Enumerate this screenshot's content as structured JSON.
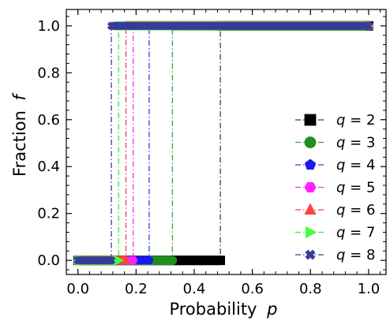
{
  "chart_data": {
    "type": "line",
    "xlabel": "Probability",
    "xlabel_var": "p",
    "ylabel": "Fraction",
    "ylabel_var": "f",
    "xlim": [
      -0.04,
      1.06
    ],
    "ylim": [
      -0.06,
      1.07
    ],
    "xticks": [
      0.0,
      0.2,
      0.4,
      0.6,
      0.8,
      1.0
    ],
    "yticks": [
      0.0,
      0.2,
      0.4,
      0.6,
      0.8,
      1.0
    ],
    "xticklabels": [
      "0.0",
      "0.2",
      "0.4",
      "0.6",
      "0.8",
      "1.0"
    ],
    "yticklabels": [
      "0.0",
      "0.2",
      "0.4",
      "0.6",
      "0.8",
      "1.0"
    ],
    "grid": false,
    "legend_position": "center-right",
    "line_style": "dash-dot",
    "series": [
      {
        "name": "q = 2",
        "legend_prefix": "q",
        "legend_value": "2",
        "marker": "square",
        "color": "#404040",
        "fill": "#000000",
        "threshold": 0.49
      },
      {
        "name": "q = 3",
        "legend_prefix": "q",
        "legend_value": "3",
        "marker": "circle",
        "color": "#3a9a3a",
        "fill": "#1f8f1f",
        "threshold": 0.325
      },
      {
        "name": "q = 4",
        "legend_prefix": "q",
        "legend_value": "4",
        "marker": "pentagon",
        "color": "#3a3adf",
        "fill": "#1a1aee",
        "threshold": 0.245
      },
      {
        "name": "q = 5",
        "legend_prefix": "q",
        "legend_value": "5",
        "marker": "hexagon",
        "color": "#ee33ee",
        "fill": "#ff22ff",
        "threshold": 0.19
      },
      {
        "name": "q = 6",
        "legend_prefix": "q",
        "legend_value": "6",
        "marker": "triangle-up",
        "color": "#f04040",
        "fill": "#ff4444",
        "threshold": 0.165
      },
      {
        "name": "q = 7",
        "legend_prefix": "q",
        "legend_value": "7",
        "marker": "triangle-right",
        "color": "#33ee33",
        "fill": "#44ff44",
        "threshold": 0.14
      },
      {
        "name": "q = 8",
        "legend_prefix": "q",
        "legend_value": "8",
        "marker": "x",
        "color": "#3a3a9a",
        "fill": "#3a3a99",
        "threshold": 0.115
      }
    ],
    "x_start": 0.0,
    "x_end": 1.0,
    "low_value": 0.0,
    "high_value": 1.0
  }
}
